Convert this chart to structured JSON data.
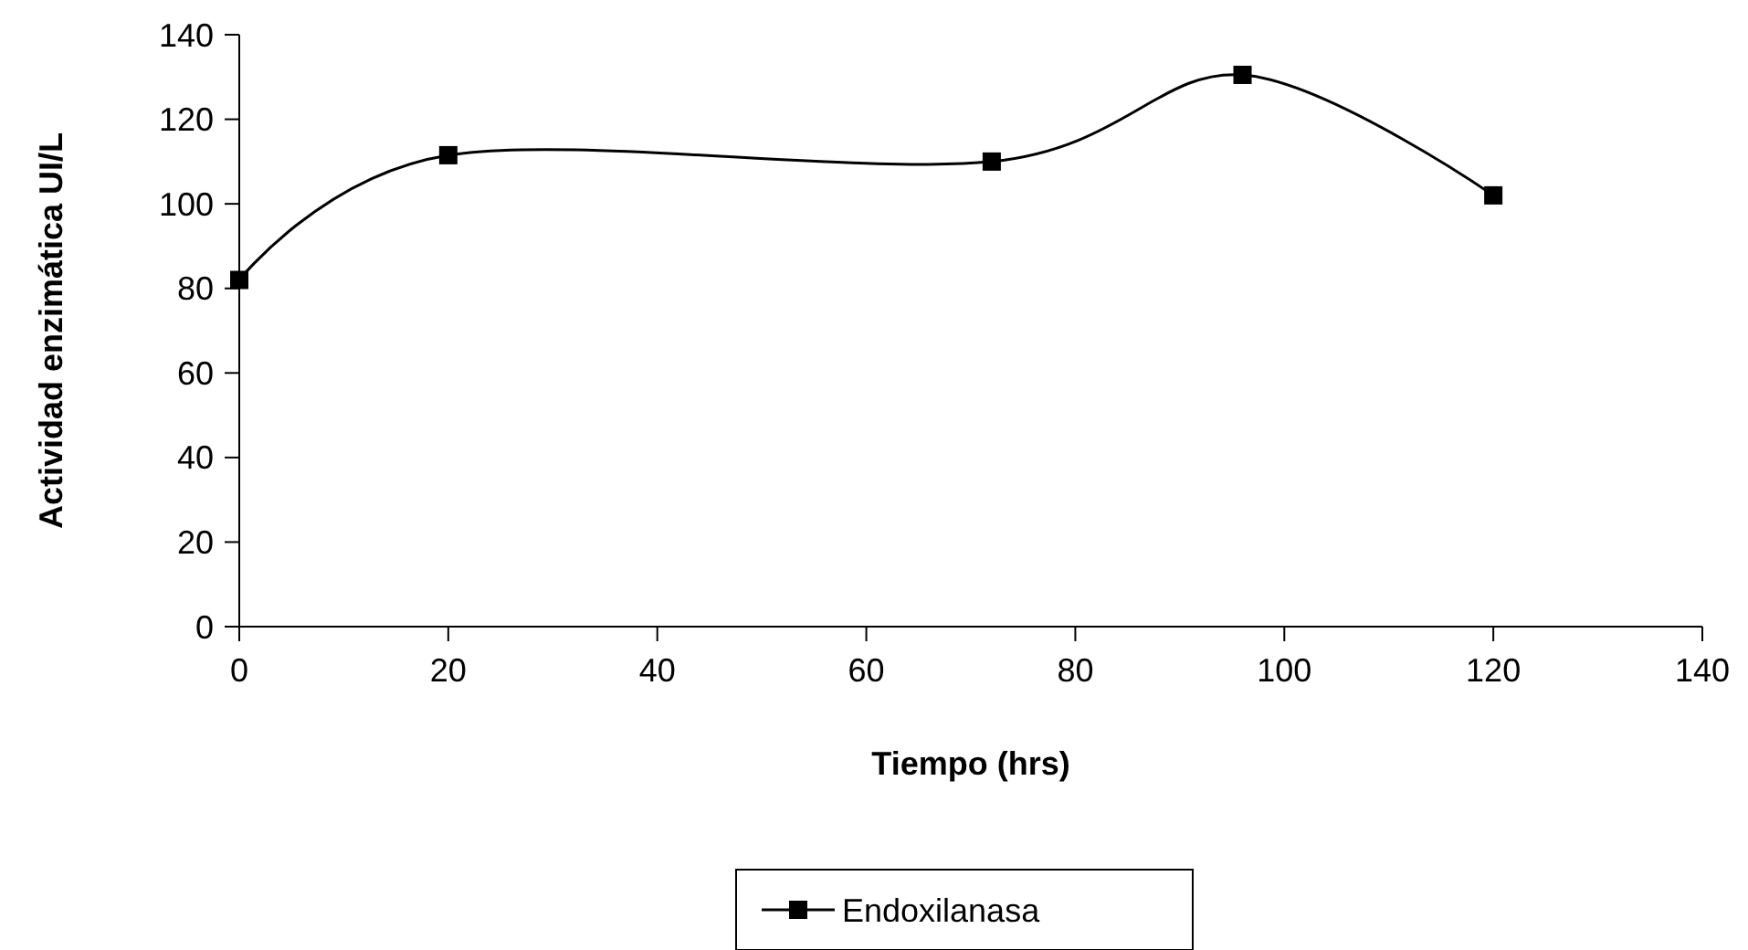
{
  "chart_data": {
    "type": "line",
    "xlabel": "Tiempo (hrs)",
    "ylabel": "Actividad enzimática UI/L",
    "x": [
      0,
      20,
      72,
      96,
      120
    ],
    "series": [
      {
        "name": "Endoxilanasa",
        "color": "#000000",
        "values": [
          82,
          111.5,
          110,
          130.5,
          102
        ]
      }
    ],
    "xlim": [
      0,
      140
    ],
    "xticks": [
      0,
      20,
      40,
      60,
      80,
      100,
      120,
      140
    ],
    "ylim": [
      0,
      140
    ],
    "yticks": [
      0,
      20,
      40,
      60,
      80,
      100,
      120,
      140
    ],
    "grid": false,
    "legend": "bottom",
    "marker": "square",
    "line_style": "solid"
  }
}
